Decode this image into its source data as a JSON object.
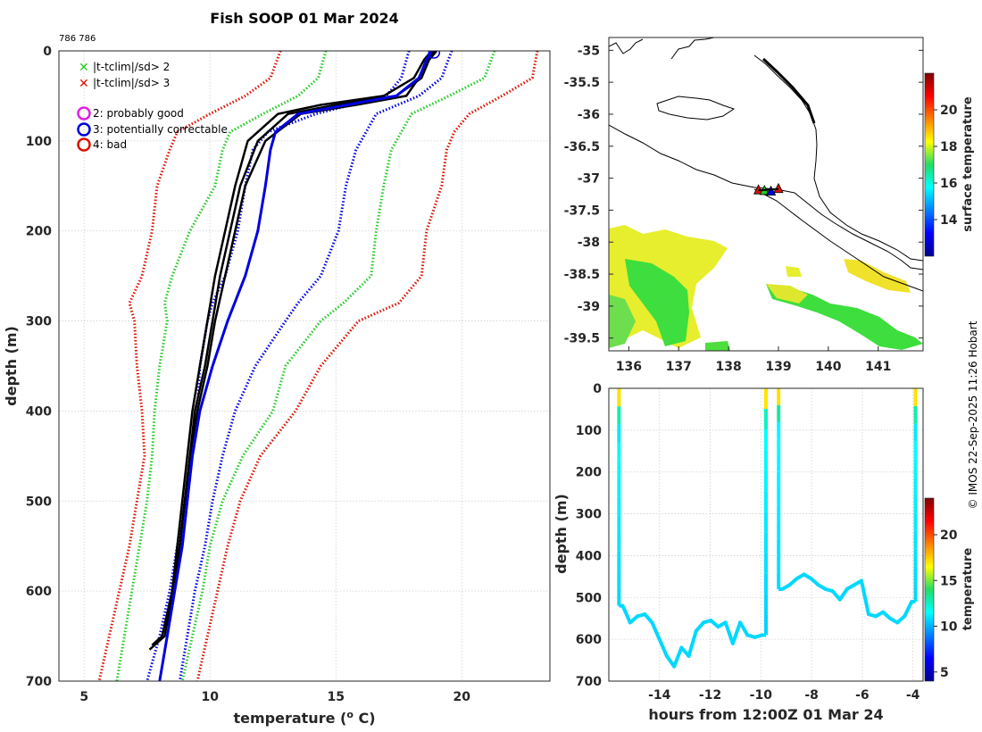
{
  "title": "Fish SOOP 01 Mar 2024",
  "cruise_id": "786 786",
  "copyright": "© IMOS 22-Sep-2025 11:26 Hobart",
  "legend": {
    "x2": "|t-tclim|/sd> 2",
    "x3": "|t-tclim|/sd> 3",
    "q2": "2: probably good",
    "q3": "3: potentially correctable",
    "q4": "4: bad"
  },
  "colors": {
    "blue": "#0000e0",
    "green": "#22cc22",
    "red": "#dd1100",
    "magenta": "#e020e0",
    "black": "#000000"
  },
  "chart_data": [
    {
      "id": "profile",
      "type": "line",
      "xlabel": "temperature (⁰ C)",
      "xlabel_text": "temperature (",
      "xlabel_sup": "o",
      "xlabel_tail": " C)",
      "ylabel": "depth (m)",
      "xlim": [
        4,
        23.5
      ],
      "ylim": [
        0,
        700
      ],
      "xticks": [
        5,
        10,
        15,
        20
      ],
      "yticks": [
        0,
        100,
        200,
        300,
        400,
        500,
        600,
        700
      ],
      "depths": [
        0,
        30,
        50,
        70,
        90,
        110,
        150,
        200,
        250,
        280,
        300,
        350,
        400,
        450,
        500,
        550,
        600,
        650,
        700
      ],
      "climatology": [
        {
          "name": "mean+1sd",
          "color": "blue",
          "values": [
            17.9,
            17.6,
            17.0,
            14.2,
            12.3,
            11.7,
            11.4,
            11.1,
            10.6,
            10.1,
            9.9,
            9.6,
            9.5,
            9.3,
            9.0,
            8.7,
            8.4,
            8.0,
            7.5
          ]
        },
        {
          "name": "mean-1sd",
          "color": "blue",
          "values": [
            19.6,
            19.2,
            18.3,
            16.6,
            16.2,
            15.8,
            15.4,
            15.1,
            14.4,
            13.5,
            13.0,
            11.8,
            11.0,
            10.5,
            10.1,
            9.8,
            9.4,
            9.1,
            8.8
          ]
        },
        {
          "name": "mean-2sd",
          "color": "green",
          "values": [
            14.6,
            14.3,
            13.5,
            12.1,
            10.8,
            10.5,
            10.2,
            9.2,
            8.5,
            8.2,
            8.3,
            8.0,
            7.8,
            7.7,
            7.5,
            7.2,
            6.9,
            6.6,
            6.3
          ]
        },
        {
          "name": "mean+2sd",
          "color": "green",
          "values": [
            21.3,
            20.9,
            19.5,
            18.0,
            17.6,
            17.2,
            16.9,
            16.6,
            16.4,
            15.3,
            14.4,
            13.0,
            12.5,
            11.3,
            10.5,
            10.0,
            9.7,
            9.3,
            8.9
          ]
        },
        {
          "name": "mean-3sd",
          "color": "red",
          "values": [
            12.8,
            12.4,
            11.4,
            10.0,
            8.7,
            8.4,
            7.9,
            7.7,
            7.3,
            6.8,
            7.0,
            7.1,
            7.3,
            7.4,
            7.1,
            6.8,
            6.4,
            6.0,
            5.6
          ]
        },
        {
          "name": "mean+3sd",
          "color": "red",
          "values": [
            23.0,
            22.8,
            21.6,
            20.3,
            19.7,
            19.4,
            19.2,
            18.6,
            18.4,
            17.5,
            15.9,
            14.4,
            13.4,
            12.0,
            11.2,
            10.7,
            10.3,
            9.9,
            9.5
          ]
        }
      ],
      "profiles": [
        {
          "color": "black",
          "depths": [
            0,
            10,
            30,
            50,
            60,
            70,
            100,
            150,
            200,
            250,
            300,
            350,
            400,
            450,
            500,
            550,
            600,
            650,
            665
          ],
          "values": [
            19.0,
            18.7,
            18.4,
            17.4,
            15.0,
            13.1,
            11.9,
            11.2,
            10.8,
            10.4,
            10.1,
            9.8,
            9.4,
            9.2,
            9.0,
            8.8,
            8.5,
            8.2,
            7.6
          ]
        },
        {
          "color": "black",
          "depths": [
            0,
            10,
            30,
            50,
            60,
            70,
            100,
            150,
            200,
            250,
            300,
            350,
            400,
            450,
            500,
            550,
            600,
            650,
            660
          ],
          "values": [
            18.8,
            18.5,
            18.1,
            16.9,
            14.4,
            12.7,
            11.5,
            11.0,
            10.6,
            10.2,
            9.9,
            9.6,
            9.3,
            9.1,
            8.9,
            8.7,
            8.5,
            8.1,
            7.7
          ]
        },
        {
          "color": "black",
          "depths": [
            0,
            10,
            30,
            50,
            60,
            70,
            100,
            150,
            200,
            250,
            300,
            350,
            400,
            450,
            500,
            550,
            600,
            640
          ],
          "values": [
            18.9,
            18.6,
            18.3,
            17.8,
            15.8,
            13.6,
            12.2,
            11.4,
            11.0,
            10.6,
            10.2,
            9.9,
            9.5,
            9.2,
            9.0,
            8.8,
            8.6,
            8.3
          ]
        },
        {
          "color": "blue",
          "depths": [
            0,
            10,
            30,
            50,
            70,
            90,
            110,
            150,
            200,
            250,
            300,
            350,
            400,
            450,
            500,
            550,
            600,
            650,
            700
          ],
          "values": [
            18.8,
            18.6,
            18.3,
            17.4,
            13.5,
            12.6,
            12.4,
            12.2,
            11.9,
            11.4,
            10.7,
            10.1,
            9.6,
            9.3,
            9.1,
            8.9,
            8.6,
            8.3,
            8.0
          ]
        }
      ],
      "surface_marker_temp": 18.9
    },
    {
      "id": "map",
      "type": "scatter",
      "xlim": [
        135.6,
        141.9
      ],
      "ylim": [
        -39.7,
        -34.8
      ],
      "xticks": [
        136,
        137,
        138,
        139,
        140,
        141
      ],
      "yticks": [
        -35,
        -35.5,
        -36,
        -36.5,
        -37,
        -37.5,
        -38,
        -38.5,
        -39,
        -39.5
      ],
      "ytick_labels": [
        "-35",
        "-35.5",
        "-36",
        "-36.5",
        "-37",
        "-37.5",
        "-38",
        "-38.5",
        "-39",
        "-39.5"
      ],
      "colorbar_label": "surface temperature",
      "colorbar_range": [
        12,
        22
      ],
      "colorbar_ticks": [
        14,
        16,
        18,
        20
      ],
      "stations": [
        {
          "lon": 138.6,
          "lat": -37.19,
          "color": "red"
        },
        {
          "lon": 138.72,
          "lat": -37.2,
          "color": "green"
        },
        {
          "lon": 138.85,
          "lat": -37.21,
          "color": "blue"
        },
        {
          "lon": 139.0,
          "lat": -37.17,
          "color": "red"
        }
      ]
    },
    {
      "id": "time_depth",
      "type": "line",
      "xlabel": "hours from 12:00Z 01 Mar 24",
      "ylabel": "depth (m)",
      "xlim": [
        -16.0,
        -3.6
      ],
      "ylim": [
        0,
        700
      ],
      "xticks": [
        -14,
        -12,
        -10,
        -8,
        -6,
        -4
      ],
      "yticks": [
        0,
        100,
        200,
        300,
        400,
        500,
        600,
        700
      ],
      "colorbar_label": "temperature",
      "colorbar_range": [
        4,
        24
      ],
      "colorbar_ticks": [
        5,
        10,
        15,
        20
      ],
      "casts": [
        {
          "start_hour": -15.6,
          "bottom_depths": [
            520,
            560,
            545,
            540,
            560,
            600,
            640,
            665,
            620,
            640,
            580,
            560,
            555,
            570,
            560,
            610,
            560,
            590,
            595,
            590
          ],
          "end_hour": -9.8
        },
        {
          "start_hour": -9.3,
          "bottom_depths": [
            480,
            470,
            455,
            445,
            455,
            470,
            480,
            485,
            505,
            480,
            470,
            460,
            540,
            545,
            535,
            550,
            560,
            545,
            510
          ],
          "end_hour": -3.9
        }
      ]
    }
  ]
}
